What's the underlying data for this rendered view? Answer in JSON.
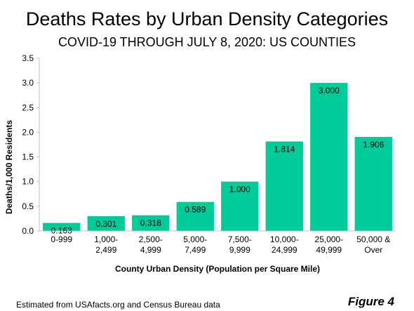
{
  "title": "Deaths Rates by Urban Density Categories",
  "subtitle": "COVID-19 THROUGH JULY 8, 2020: US COUNTIES",
  "source_note": "Estimated from USAfacts.org and Census Bureau data",
  "figure_label": "Figure 4",
  "bar_color": "#00CC99",
  "chart_data": {
    "type": "bar",
    "title": "Deaths Rates by Urban Density Categories",
    "subtitle": "COVID-19 THROUGH JULY 8, 2020: US COUNTIES",
    "xlabel": "County Urban Density (Population per Square Mile)",
    "ylabel": "Deaths/1,000 Residents",
    "ylim": [
      0,
      3.5
    ],
    "yticks": [
      "0.0",
      "0.5",
      "1.0",
      "1.5",
      "2.0",
      "2.5",
      "3.0",
      "3.5"
    ],
    "grid": false,
    "legend": "none",
    "categories": [
      [
        "0-999"
      ],
      [
        "1,000-",
        "2,499"
      ],
      [
        "2,500-",
        "4,999"
      ],
      [
        "5,000-",
        "7,499"
      ],
      [
        "7,500-",
        "9,999"
      ],
      [
        "10,000-",
        "24,999"
      ],
      [
        "25,000-",
        "49,999"
      ],
      [
        "50,000 &",
        "Over"
      ]
    ],
    "values": [
      0.163,
      0.301,
      0.318,
      0.589,
      1.0,
      1.814,
      3.0,
      1.906
    ],
    "data_labels": [
      "0.163",
      "0.301",
      "0.318",
      "0.589",
      "1.000",
      "1.814",
      "3.000",
      "1.906"
    ]
  }
}
